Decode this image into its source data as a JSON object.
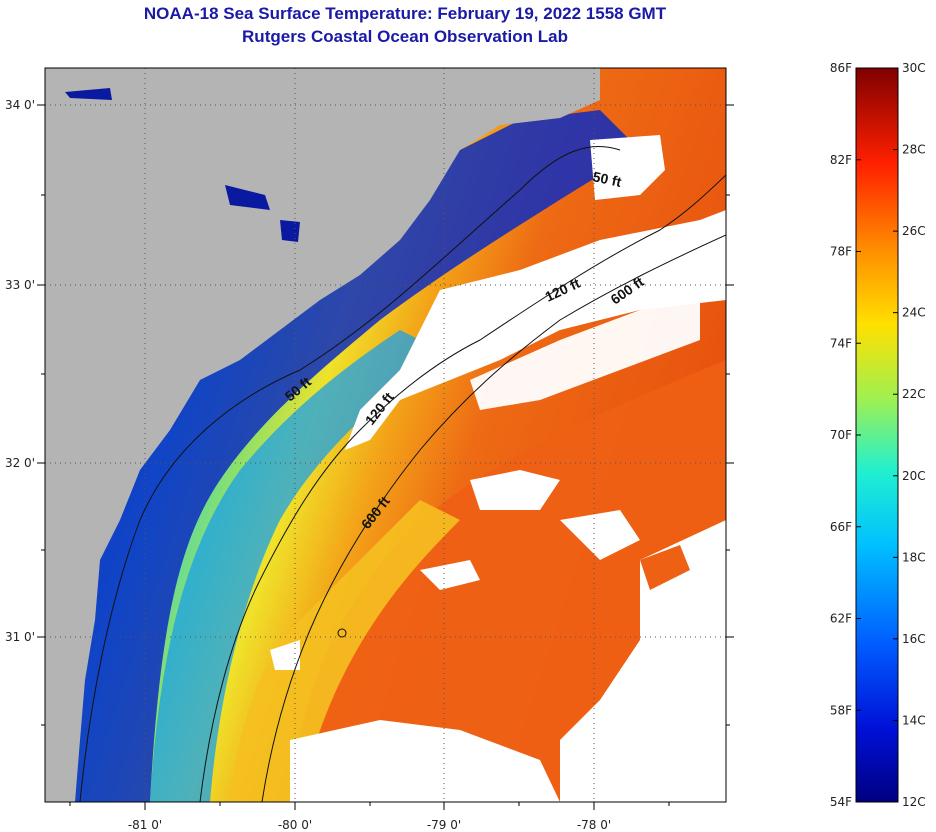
{
  "header": {
    "title": "NOAA-18 Sea Surface Temperature:  February 19, 2022 1558 GMT",
    "subtitle": "Rutgers Coastal Ocean Observation Lab"
  },
  "map": {
    "lon_labels": [
      "-81 0'",
      "-80 0'",
      "-79 0'",
      "-78 0'"
    ],
    "lat_labels": [
      "34 0'",
      "33 0'",
      "32 0'",
      "31 0'"
    ],
    "depth_labels": {
      "d50_north": "50 ft",
      "d50_south": "50 ft",
      "d120_north": "120 ft",
      "d120_south": "120 ft",
      "d600_north": "600 ft",
      "d600_south": "600 ft"
    },
    "colors": {
      "land": "#b4b4b4",
      "cloud": "#ffffff",
      "cold": "#0a1aa0",
      "warm": "#ee5a14"
    }
  },
  "colorbar": {
    "fahrenheit": [
      "86F",
      "82F",
      "78F",
      "74F",
      "70F",
      "66F",
      "62F",
      "58F",
      "54F"
    ],
    "celsius": [
      "30C",
      "28C",
      "26C",
      "24C",
      "22C",
      "20C",
      "18C",
      "16C",
      "14C",
      "12C"
    ],
    "range_f": [
      54,
      86
    ],
    "range_c": [
      12,
      30
    ]
  }
}
